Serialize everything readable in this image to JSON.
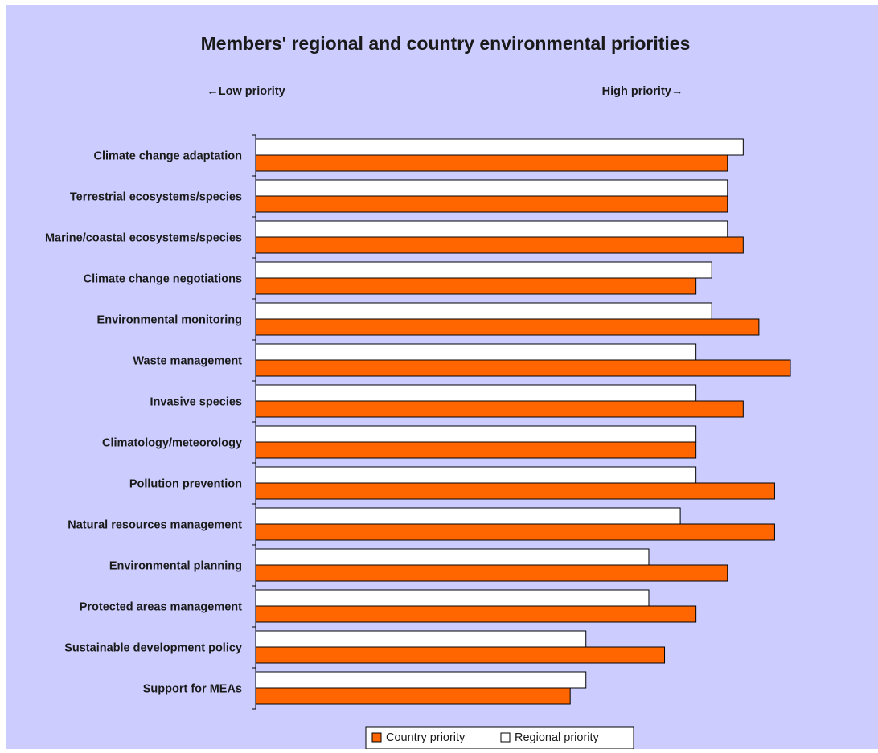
{
  "colors": {
    "background": "#ccccff",
    "country_bar": "#ff6600",
    "regional_bar": "#ffffff",
    "outline": "#000000",
    "text": "#1a1a1a"
  },
  "chart_data": {
    "type": "bar",
    "orientation": "horizontal",
    "title": "Members' regional and country environmental priorities",
    "annotations": {
      "low": "←Low priority",
      "high": "High priority→"
    },
    "categories": [
      "Climate change adaptation",
      "Terrestrial ecosystems/species",
      "Marine/coastal ecosystems/species",
      "Climate change negotiations",
      "Environmental monitoring",
      "Waste management",
      "Invasive species",
      "Climatology/meteorology",
      "Pollution prevention",
      "Natural resources management",
      "Environmental planning",
      "Protected areas management",
      "Sustainable development policy",
      "Support for MEAs"
    ],
    "series": [
      {
        "name": "Regional priority",
        "color": "#ffffff",
        "values": [
          31,
          30,
          30,
          29,
          29,
          28,
          28,
          28,
          28,
          27,
          25,
          25,
          21,
          21
        ]
      },
      {
        "name": "Country priority",
        "color": "#ff6600",
        "values": [
          30,
          30,
          31,
          28,
          32,
          34,
          31,
          28,
          33,
          33,
          30,
          28,
          26,
          20
        ]
      }
    ],
    "xlim": [
      0,
      34
    ],
    "grid": false,
    "legend_position": "bottom",
    "legend_order": [
      "Country priority",
      "Regional priority"
    ]
  }
}
